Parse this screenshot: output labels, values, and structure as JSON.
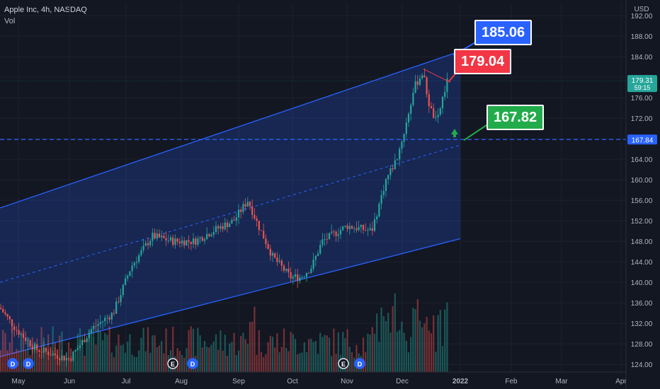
{
  "header": {
    "symbol_line": "Apple Inc, 4h, NASDAQ",
    "indicator": "Vol"
  },
  "colors": {
    "up": "#26a69a",
    "down": "#ef5350",
    "channel": "#2962ff",
    "bg": "#131722",
    "grid": "#1e222d",
    "callout_blue": "#2962ff",
    "callout_red": "#f23645",
    "callout_green": "#22ab4a"
  },
  "callouts": {
    "target_high": "185.06",
    "target_mid": "179.04",
    "support": "167.82"
  },
  "icons": [
    "earnings-E-icon",
    "dividend-D-icon",
    "up-arrow-icon"
  ],
  "chart_data": {
    "type": "candlestick",
    "currency": "USD",
    "y_ticks": [
      "192.00",
      "188.00",
      "184.00",
      "180.00",
      "176.00",
      "172.00",
      "168.00",
      "164.00",
      "160.00",
      "156.00",
      "152.00",
      "148.00",
      "144.00",
      "140.00",
      "136.00",
      "132.00",
      "128.00",
      "124.00"
    ],
    "x_ticks": [
      "May",
      "Jun",
      "Jul",
      "Aug",
      "Sep",
      "Oct",
      "Nov",
      "Dec",
      "2022",
      "Feb",
      "Mar",
      "Apr"
    ],
    "ylim": [
      122.5,
      194.5
    ],
    "last_price": "179.31",
    "countdown": "59:15",
    "hline_price": "167.84",
    "price_series": [
      {
        "month": "May",
        "close": 130
      },
      {
        "month": "Jun",
        "close": 126
      },
      {
        "month": "Jun15",
        "close": 130
      },
      {
        "month": "Jul",
        "close": 140
      },
      {
        "month": "Jul15",
        "close": 148
      },
      {
        "month": "Aug",
        "close": 147
      },
      {
        "month": "Aug15",
        "close": 149
      },
      {
        "month": "Aug25",
        "close": 150
      },
      {
        "month": "Sep",
        "close": 156
      },
      {
        "month": "Sep15",
        "close": 149
      },
      {
        "month": "Oct",
        "close": 142
      },
      {
        "month": "Oct15",
        "close": 141
      },
      {
        "month": "Oct25",
        "close": 149
      },
      {
        "month": "Nov",
        "close": 150
      },
      {
        "month": "Nov15",
        "close": 150
      },
      {
        "month": "Nov25",
        "close": 160
      },
      {
        "month": "Dec",
        "close": 170
      },
      {
        "month": "Dec10",
        "close": 180
      },
      {
        "month": "Dec20",
        "close": 170
      },
      {
        "month": "Dec30",
        "close": 179.31
      }
    ],
    "channel": {
      "upper_start": [
        0,
        154.5
      ],
      "upper_end": [
        "Dec30",
        185.06
      ],
      "lower_start": [
        0,
        125.5
      ],
      "lower_end": [
        "Dec30",
        148.5
      ]
    }
  }
}
